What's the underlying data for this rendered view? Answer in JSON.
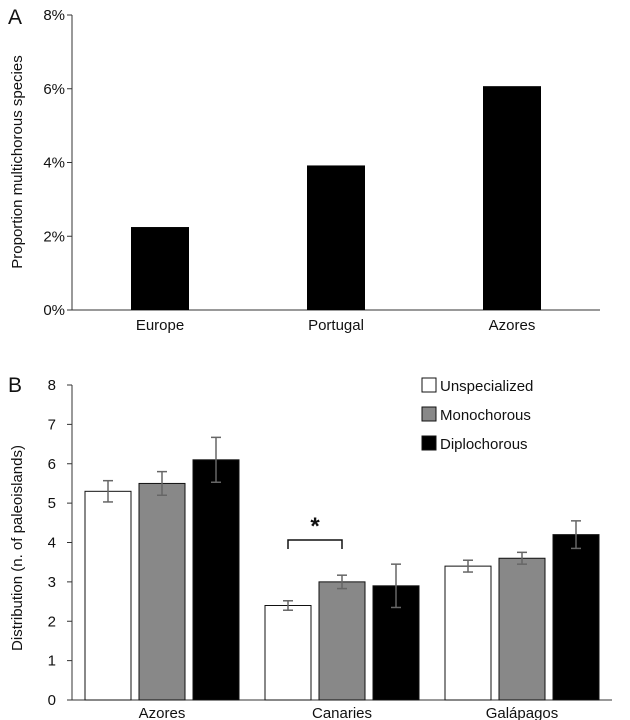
{
  "chart_data": [
    {
      "panel": "A",
      "type": "bar",
      "ylabel": "Proportion multichorous species",
      "yticks": [
        "0%",
        "2%",
        "4%",
        "6%",
        "8%"
      ],
      "ylim": [
        0,
        8
      ],
      "categories": [
        "Europe",
        "Portugal",
        "Azores"
      ],
      "values": [
        2.25,
        3.92,
        6.07
      ],
      "value_unit": "%",
      "color": "#000000"
    },
    {
      "panel": "B",
      "type": "bar",
      "ylabel": "Distribution (n. of paleoislands)",
      "yticks": [
        "0",
        "1",
        "2",
        "3",
        "4",
        "5",
        "6",
        "7",
        "8"
      ],
      "ylim": [
        0,
        8
      ],
      "categories": [
        "Azores",
        "Canaries",
        "Galápagos"
      ],
      "series": [
        {
          "name": "Unspecialized",
          "color": "#ffffff",
          "values": [
            5.3,
            2.4,
            3.4
          ],
          "errors": [
            0.27,
            0.12,
            0.15
          ]
        },
        {
          "name": "Monochorous",
          "color": "#888888",
          "values": [
            5.5,
            3.0,
            3.6
          ],
          "errors": [
            0.3,
            0.17,
            0.15
          ]
        },
        {
          "name": "Diplochorous",
          "color": "#000000",
          "values": [
            6.1,
            2.9,
            4.2
          ],
          "errors": [
            0.57,
            0.55,
            0.35
          ]
        }
      ],
      "annotations": [
        {
          "text": "*",
          "between": "Canaries: Unspecialized vs Monochorous"
        }
      ],
      "legend_position": "top-right"
    }
  ]
}
